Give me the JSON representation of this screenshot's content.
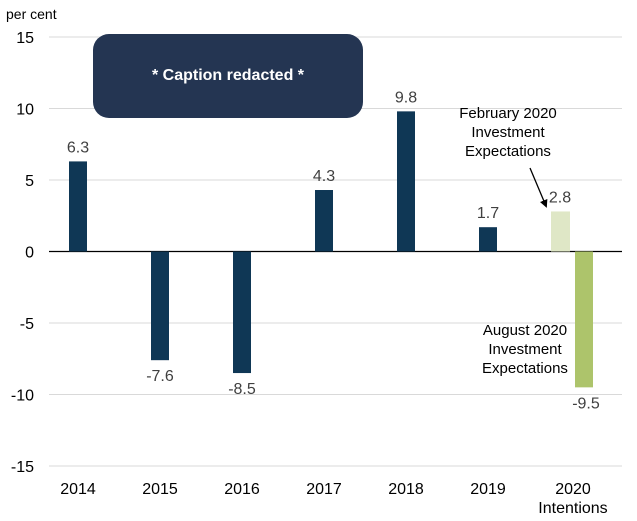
{
  "chart_data": {
    "type": "bar",
    "title": "",
    "ylabel": "per cent",
    "xlabel": "",
    "ylim": [
      -15,
      15
    ],
    "yticks": [
      15,
      10,
      5,
      0,
      -5,
      -10,
      -15
    ],
    "grid": true,
    "categories": [
      "2014",
      "2015",
      "2016",
      "2017",
      "2018",
      "2019",
      "2020 Intentions"
    ],
    "category_lines": [
      [
        "2014"
      ],
      [
        "2015"
      ],
      [
        "2016"
      ],
      [
        "2017"
      ],
      [
        "2018"
      ],
      [
        "2019"
      ],
      [
        "2020",
        "Intentions"
      ]
    ],
    "series": [
      {
        "name": "Annual",
        "color": "#0f3755",
        "values": [
          6.3,
          -7.6,
          -8.5,
          4.3,
          9.8,
          1.7,
          null
        ],
        "labels": [
          "6.3",
          "-7.6",
          "-8.5",
          "4.3",
          "9.8",
          "1.7",
          ""
        ]
      },
      {
        "name": "February 2020 Investment Expectations",
        "color": "#dfe7c6",
        "values": [
          null,
          null,
          null,
          null,
          null,
          null,
          2.8
        ],
        "labels": [
          "",
          "",
          "",
          "",
          "",
          "",
          "2.8"
        ]
      },
      {
        "name": "August 2020 Investment Expectations",
        "color": "#adc46b",
        "values": [
          null,
          null,
          null,
          null,
          null,
          null,
          -9.5
        ],
        "labels": [
          "",
          "",
          "",
          "",
          "",
          "",
          "-9.5"
        ]
      }
    ],
    "annotations": [
      {
        "target": "February 2020 Investment Expectations",
        "lines": [
          "February 2020",
          "Investment",
          "Expectations"
        ],
        "arrow": true
      },
      {
        "target": "August 2020 Investment Expectations",
        "lines": [
          "August 2020",
          "Investment",
          "Expectations"
        ],
        "arrow": false
      }
    ],
    "legend": "none"
  },
  "caption": "* Caption redacted *"
}
